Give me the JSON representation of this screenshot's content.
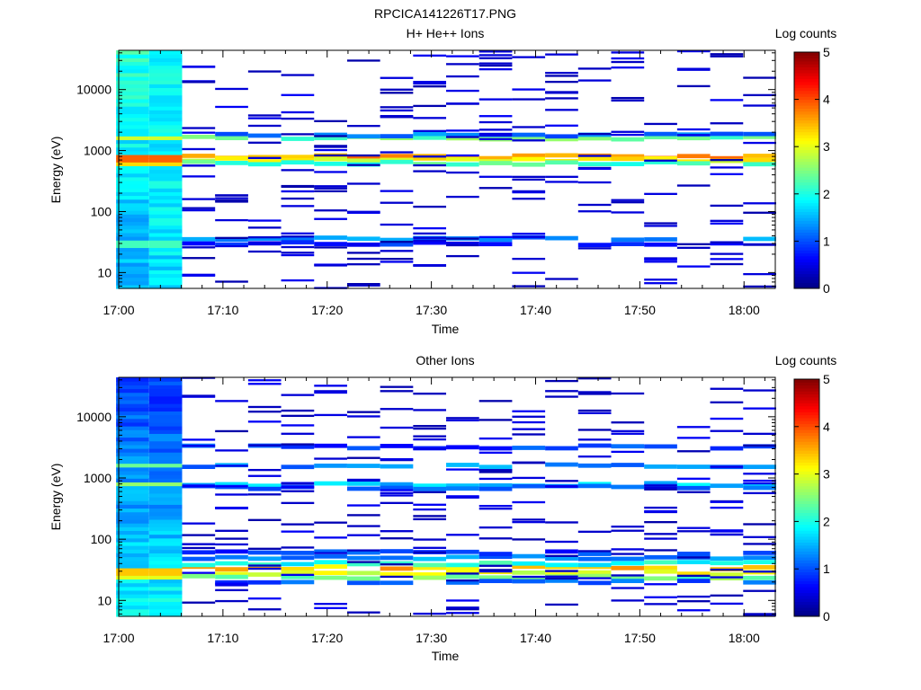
{
  "figure": {
    "title": "RPCICA141226T17.PNG"
  },
  "chart_data": [
    {
      "type": "heatmap",
      "title": "H+ He++ Ions",
      "xlabel": "Time",
      "ylabel": "Energy (eV)",
      "colorbar_label": "Log counts",
      "y_scale": "log",
      "ylim": [
        5.5,
        44000
      ],
      "xlim": [
        "17:00",
        "18:03"
      ],
      "x_ticks": [
        "17:00",
        "17:10",
        "17:20",
        "17:30",
        "17:40",
        "17:50",
        "18:00"
      ],
      "y_ticks": [
        10,
        100,
        1000,
        10000
      ],
      "y_tick_labels": [
        "10",
        "100",
        "1000",
        "10000"
      ],
      "color_range": [
        0,
        5
      ],
      "colorbar_ticks": [
        "0",
        "1",
        "2",
        "3",
        "4",
        "5"
      ],
      "colormap": "jet",
      "time_bins": [
        "17:01:20",
        "17:04:30",
        "17:07:40",
        "17:10:50",
        "17:14:00",
        "17:17:10",
        "17:20:20",
        "17:23:30",
        "17:26:40",
        "17:29:50",
        "17:33:00",
        "17:36:10",
        "17:39:20",
        "17:42:30",
        "17:45:40",
        "17:48:50",
        "17:52:00",
        "17:55:10",
        "17:58:20",
        "18:01:30"
      ],
      "dense_profile": {
        "columns": [
          0,
          1
        ],
        "base_low": [
          1.4,
          1.7
        ],
        "base_high": [
          2.1,
          1.9
        ],
        "bands": [
          {
            "energy": 780,
            "value": 3.9
          },
          {
            "energy": 680,
            "value": 3.3
          },
          {
            "energy": 1650,
            "value": 2.9
          },
          {
            "energy": 30,
            "value": 2.2
          }
        ]
      },
      "bands": [
        {
          "energy": 790,
          "value": 3.6
        },
        {
          "energy": 700,
          "value": 3.1
        },
        {
          "energy": 620,
          "value": 2.2
        },
        {
          "energy": 1600,
          "value": 2.4
        },
        {
          "energy": 1800,
          "value": 1.2
        },
        {
          "energy": 36,
          "value": 1.3
        },
        {
          "energy": 30,
          "value": 0.8
        }
      ],
      "sparse_value": 0.4
    },
    {
      "type": "heatmap",
      "title": "Other Ions",
      "xlabel": "Time",
      "ylabel": "Energy (eV)",
      "colorbar_label": "Log counts",
      "y_scale": "log",
      "ylim": [
        5.5,
        44000
      ],
      "xlim": [
        "17:00",
        "18:03"
      ],
      "x_ticks": [
        "17:00",
        "17:10",
        "17:20",
        "17:30",
        "17:40",
        "17:50",
        "18:00"
      ],
      "y_ticks": [
        10,
        100,
        1000,
        10000
      ],
      "y_tick_labels": [
        "10",
        "100",
        "1000",
        "10000"
      ],
      "color_range": [
        0,
        5
      ],
      "colorbar_ticks": [
        "0",
        "1",
        "2",
        "3",
        "4",
        "5"
      ],
      "colormap": "jet",
      "time_bins": [
        "17:01:20",
        "17:04:30",
        "17:07:40",
        "17:10:50",
        "17:14:00",
        "17:17:10",
        "17:20:20",
        "17:23:30",
        "17:26:40",
        "17:29:50",
        "17:33:00",
        "17:36:10",
        "17:39:20",
        "17:42:30",
        "17:45:40",
        "17:48:50",
        "17:52:00",
        "17:55:10",
        "17:58:20",
        "18:01:30"
      ],
      "dense_profile": {
        "columns": [
          0,
          1
        ],
        "base_low": [
          1.9,
          1.9
        ],
        "base_high": [
          0.9,
          0.9
        ],
        "bands": [
          {
            "energy": 30,
            "value": 3.4
          },
          {
            "energy": 24,
            "value": 3.0
          },
          {
            "energy": 800,
            "value": 2.6
          },
          {
            "energy": 1650,
            "value": 2.4
          }
        ]
      },
      "bands": [
        {
          "energy": 34,
          "value": 3.4
        },
        {
          "energy": 28,
          "value": 3.0
        },
        {
          "energy": 24,
          "value": 2.4
        },
        {
          "energy": 40,
          "value": 2.0
        },
        {
          "energy": 20,
          "value": 1.0
        },
        {
          "energy": 50,
          "value": 1.3
        },
        {
          "energy": 60,
          "value": 0.9
        },
        {
          "energy": 780,
          "value": 1.6
        },
        {
          "energy": 700,
          "value": 1.0
        },
        {
          "energy": 1600,
          "value": 1.3
        },
        {
          "energy": 3200,
          "value": 0.9
        }
      ],
      "sparse_value": 0.4
    }
  ]
}
